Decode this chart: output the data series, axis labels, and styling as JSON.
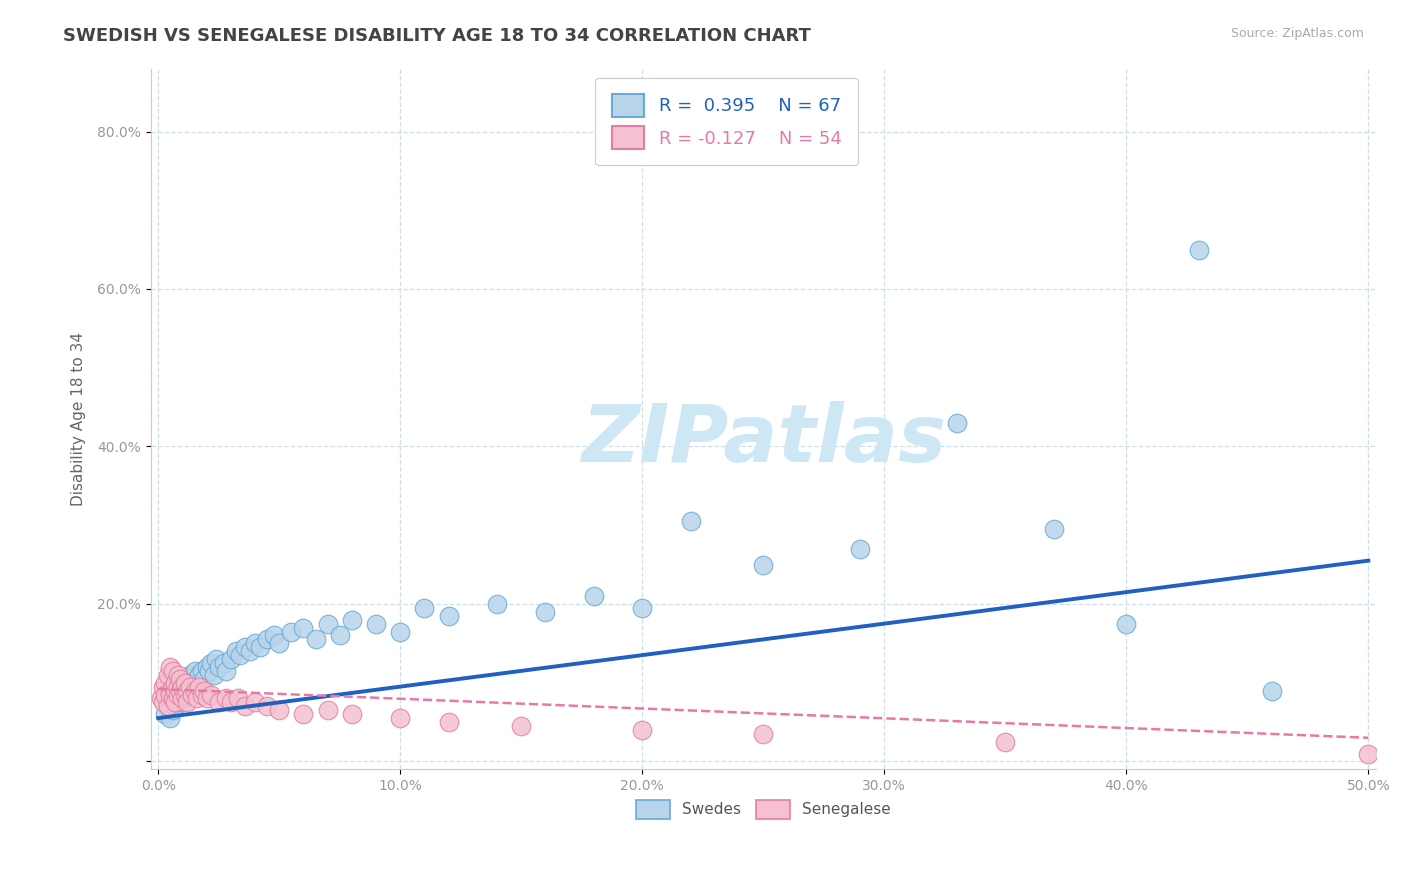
{
  "title": "SWEDISH VS SENEGALESE DISABILITY AGE 18 TO 34 CORRELATION CHART",
  "source_text": "Source: ZipAtlas.com",
  "ylabel": "Disability Age 18 to 34",
  "xlim": [
    -0.003,
    0.503
  ],
  "ylim": [
    -0.01,
    0.88
  ],
  "xtick_vals": [
    0.0,
    0.1,
    0.2,
    0.3,
    0.4,
    0.5
  ],
  "xticklabels": [
    "0.0%",
    "10.0%",
    "20.0%",
    "30.0%",
    "40.0%",
    "50.0%"
  ],
  "ytick_vals": [
    0.0,
    0.2,
    0.4,
    0.6,
    0.8
  ],
  "yticklabels": [
    "",
    "20.0%",
    "40.0%",
    "60.0%",
    "80.0%"
  ],
  "swedish_R": 0.395,
  "swedish_N": 67,
  "senegalese_R": -0.127,
  "senegalese_N": 54,
  "swedish_fill": "#b8d4ea",
  "swedish_edge": "#6aaad4",
  "senegalese_fill": "#f5c0d0",
  "senegalese_edge": "#e080a0",
  "trendline_swedish": "#2060c0",
  "trendline_senegalese": "#e878a8",
  "watermark_color": "#cde8f4",
  "grid_color": "#c8dce8",
  "background": "#ffffff",
  "swedish_x": [
    0.003,
    0.004,
    0.005,
    0.005,
    0.006,
    0.006,
    0.007,
    0.007,
    0.008,
    0.008,
    0.009,
    0.009,
    0.01,
    0.01,
    0.011,
    0.011,
    0.012,
    0.012,
    0.013,
    0.013,
    0.014,
    0.015,
    0.015,
    0.016,
    0.017,
    0.018,
    0.019,
    0.02,
    0.021,
    0.022,
    0.023,
    0.024,
    0.025,
    0.027,
    0.028,
    0.03,
    0.032,
    0.034,
    0.036,
    0.038,
    0.04,
    0.042,
    0.045,
    0.048,
    0.05,
    0.055,
    0.06,
    0.065,
    0.07,
    0.075,
    0.08,
    0.09,
    0.1,
    0.11,
    0.12,
    0.14,
    0.16,
    0.18,
    0.2,
    0.22,
    0.25,
    0.29,
    0.33,
    0.37,
    0.4,
    0.43,
    0.46
  ],
  "swedish_y": [
    0.06,
    0.07,
    0.055,
    0.08,
    0.065,
    0.09,
    0.07,
    0.085,
    0.075,
    0.095,
    0.08,
    0.1,
    0.075,
    0.095,
    0.085,
    0.1,
    0.09,
    0.105,
    0.095,
    0.11,
    0.1,
    0.095,
    0.115,
    0.105,
    0.11,
    0.115,
    0.105,
    0.12,
    0.115,
    0.125,
    0.11,
    0.13,
    0.12,
    0.125,
    0.115,
    0.13,
    0.14,
    0.135,
    0.145,
    0.14,
    0.15,
    0.145,
    0.155,
    0.16,
    0.15,
    0.165,
    0.17,
    0.155,
    0.175,
    0.16,
    0.18,
    0.175,
    0.165,
    0.195,
    0.185,
    0.2,
    0.19,
    0.21,
    0.195,
    0.305,
    0.25,
    0.27,
    0.43,
    0.295,
    0.175,
    0.65,
    0.09
  ],
  "senegalese_x": [
    0.001,
    0.002,
    0.002,
    0.003,
    0.003,
    0.004,
    0.004,
    0.005,
    0.005,
    0.005,
    0.006,
    0.006,
    0.006,
    0.007,
    0.007,
    0.007,
    0.008,
    0.008,
    0.008,
    0.009,
    0.009,
    0.01,
    0.01,
    0.011,
    0.011,
    0.012,
    0.012,
    0.013,
    0.014,
    0.015,
    0.016,
    0.017,
    0.018,
    0.019,
    0.02,
    0.022,
    0.025,
    0.028,
    0.03,
    0.033,
    0.036,
    0.04,
    0.045,
    0.05,
    0.06,
    0.07,
    0.08,
    0.1,
    0.12,
    0.15,
    0.2,
    0.25,
    0.35,
    0.5
  ],
  "senegalese_y": [
    0.08,
    0.095,
    0.075,
    0.1,
    0.085,
    0.07,
    0.11,
    0.09,
    0.085,
    0.12,
    0.095,
    0.08,
    0.115,
    0.09,
    0.1,
    0.075,
    0.095,
    0.085,
    0.11,
    0.09,
    0.105,
    0.08,
    0.095,
    0.085,
    0.1,
    0.09,
    0.075,
    0.095,
    0.085,
    0.09,
    0.08,
    0.095,
    0.085,
    0.09,
    0.08,
    0.085,
    0.075,
    0.08,
    0.075,
    0.08,
    0.07,
    0.075,
    0.07,
    0.065,
    0.06,
    0.065,
    0.06,
    0.055,
    0.05,
    0.045,
    0.04,
    0.035,
    0.025,
    0.01
  ],
  "trendline_swedish_x0": 0.0,
  "trendline_swedish_x1": 0.5,
  "trendline_swedish_y0": 0.055,
  "trendline_swedish_y1": 0.255,
  "trendline_senegalese_x0": 0.0,
  "trendline_senegalese_x1": 0.5,
  "trendline_senegalese_y0": 0.092,
  "trendline_senegalese_y1": 0.03,
  "title_fontsize": 13,
  "axis_label_fontsize": 11,
  "tick_fontsize": 10,
  "legend_fontsize": 13
}
